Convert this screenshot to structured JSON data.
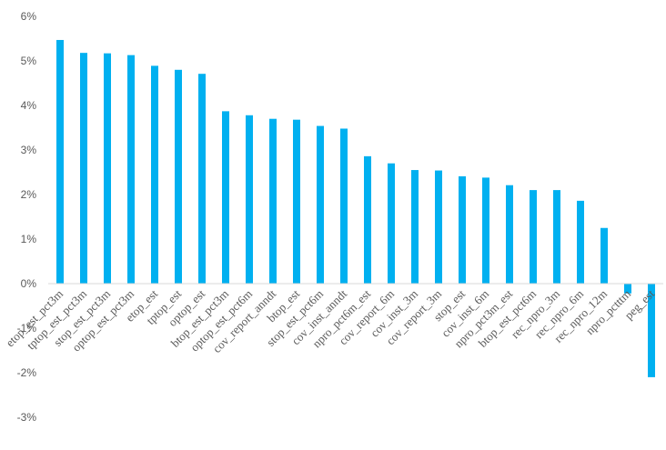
{
  "chart_data": {
    "type": "bar",
    "title": "",
    "xlabel": "",
    "ylabel": "",
    "ylim": [
      -3,
      6
    ],
    "ytick_values": [
      -3,
      -2,
      -1,
      0,
      1,
      2,
      3,
      4,
      5,
      6
    ],
    "ytick_labels": [
      "-3%",
      "-2%",
      "-1%",
      "0%",
      "1%",
      "2%",
      "3%",
      "4%",
      "5%",
      "6%"
    ],
    "categories": [
      "etop_est_pct3m",
      "tptop_est_pct3m",
      "stop_est_pct3m",
      "optop_est_pct3m",
      "etop_est",
      "tptop_est",
      "optop_est",
      "btop_est_pct3m",
      "optop_est_pct6m",
      "cov_report_anndt",
      "btop_est",
      "stop_est_pct6m",
      "cov_inst_anndt",
      "npro_pct6m_est",
      "cov_report_6m",
      "cov_inst_3m",
      "cov_report_3m",
      "stop_est",
      "cov_inst_6m",
      "npro_pct3m_est",
      "btop_est_pct6m",
      "rec_npro_3m",
      "rec_npro_6m",
      "rec_npro_12m",
      "npro_pctttm",
      "peg_est"
    ],
    "values": [
      5.47,
      5.18,
      5.17,
      5.13,
      4.89,
      4.8,
      4.71,
      3.87,
      3.78,
      3.7,
      3.68,
      3.54,
      3.48,
      2.86,
      2.7,
      2.55,
      2.54,
      2.41,
      2.38,
      2.21,
      2.1,
      2.1,
      1.86,
      1.25,
      -0.22,
      -2.1
    ],
    "bar_color": "#00B0F0",
    "axis_color": "#D9D9D9",
    "grid": false,
    "legend": "none"
  }
}
